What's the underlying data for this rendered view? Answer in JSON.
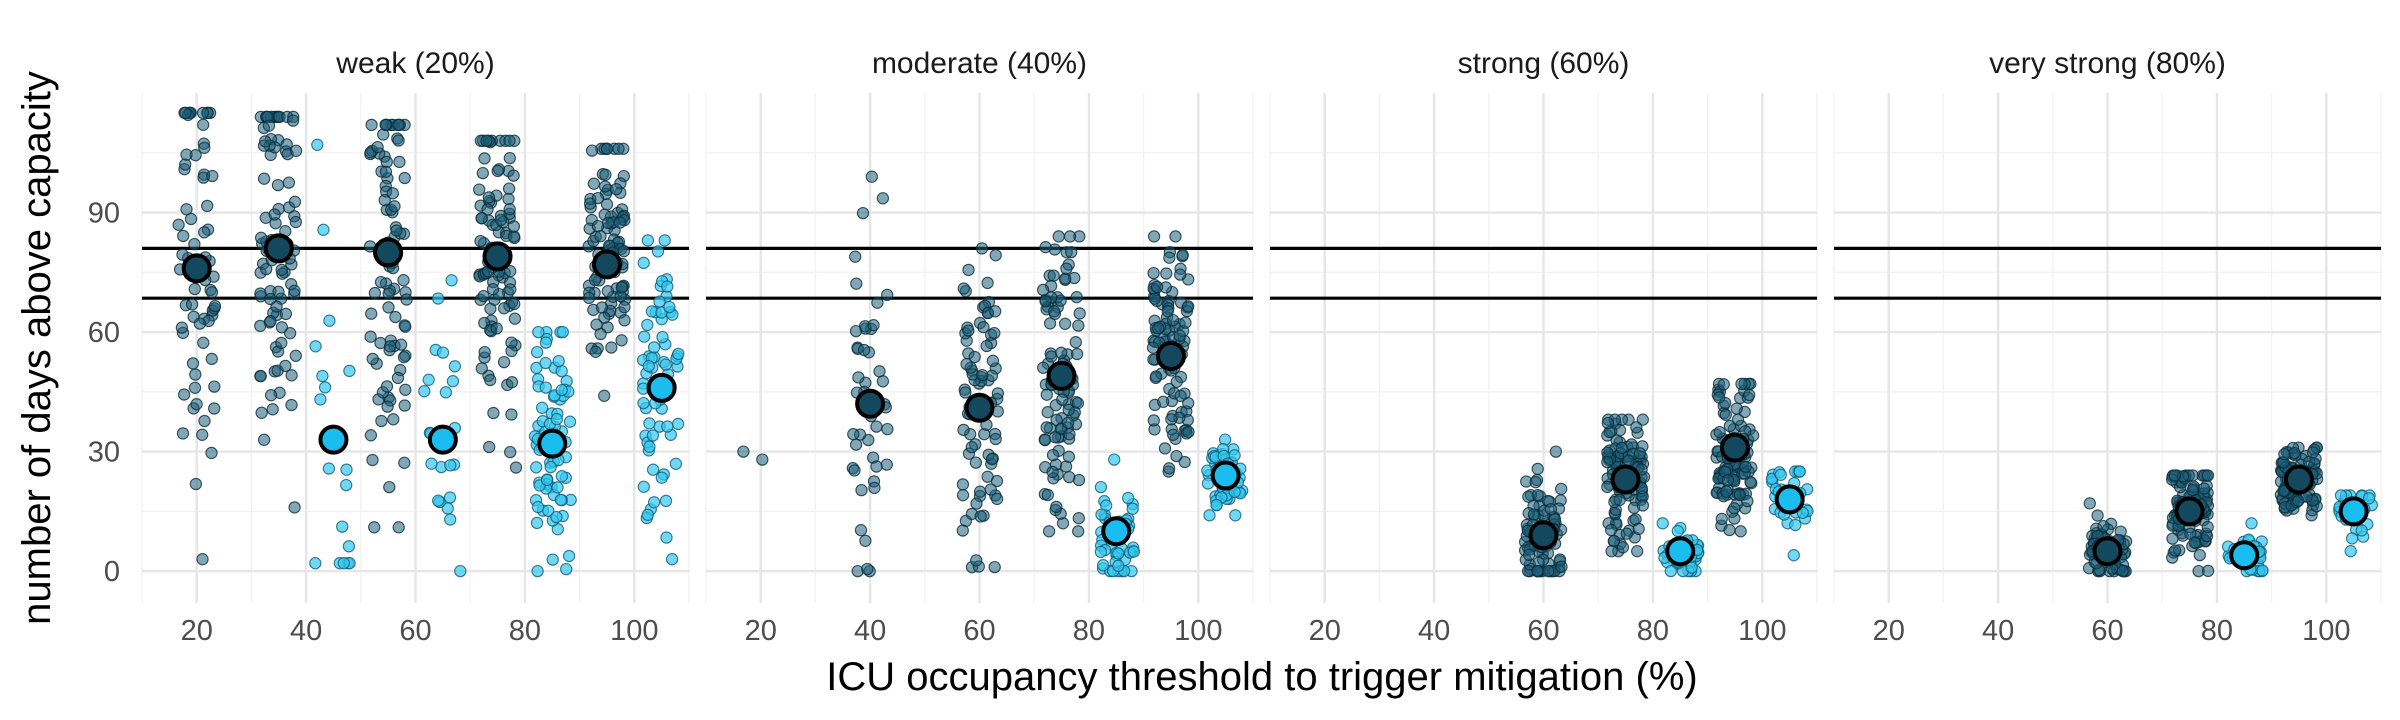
{
  "chart_data": {
    "type": "scatter",
    "title": "",
    "xlabel": "ICU occupancy threshold to trigger mitigation (%)",
    "ylabel": "number of days above capacity",
    "x_ticks": [
      20,
      40,
      60,
      80,
      100
    ],
    "y_ticks": [
      0,
      30,
      60,
      90
    ],
    "xlim": [
      10,
      110
    ],
    "ylim": [
      -8,
      120
    ],
    "reference_lines": [
      81,
      68.5
    ],
    "grid": true,
    "facets": [
      "weak (20%)",
      "moderate (40%)",
      "strong (60%)",
      "very strong (80%)"
    ],
    "series_colors": {
      "dark": "#1b5f7a",
      "light": "#33c8f0"
    },
    "panels": [
      {
        "label": "weak (20%)",
        "groups": [
          {
            "kind": "dark",
            "x": 20,
            "mean": 76,
            "min": 3,
            "max": 115,
            "n": 70
          },
          {
            "kind": "dark",
            "x": 35,
            "mean": 81,
            "min": 16,
            "max": 114,
            "n": 90
          },
          {
            "kind": "light",
            "x": 45,
            "mean": 33,
            "min": 2,
            "max": 107,
            "n": 18
          },
          {
            "kind": "dark",
            "x": 55,
            "mean": 80,
            "min": 11,
            "max": 112,
            "n": 90
          },
          {
            "kind": "light",
            "x": 65,
            "mean": 33,
            "min": 0,
            "max": 73,
            "n": 22
          },
          {
            "kind": "dark",
            "x": 75,
            "mean": 79,
            "min": 26,
            "max": 108,
            "n": 100
          },
          {
            "kind": "light",
            "x": 85,
            "mean": 32,
            "min": 0,
            "max": 60,
            "n": 80
          },
          {
            "kind": "dark",
            "x": 95,
            "mean": 77,
            "min": 44,
            "max": 106,
            "n": 100
          },
          {
            "kind": "light",
            "x": 105,
            "mean": 46,
            "min": 3,
            "max": 83,
            "n": 70
          }
        ]
      },
      {
        "label": "moderate (40%)",
        "groups": [
          {
            "kind": "dark",
            "x": 20,
            "mean": null,
            "min": 28,
            "max": 30,
            "n": 2
          },
          {
            "kind": "dark",
            "x": 40,
            "mean": 42,
            "min": 0,
            "max": 99,
            "n": 45
          },
          {
            "kind": "dark",
            "x": 60,
            "mean": 41,
            "min": 1,
            "max": 81,
            "n": 80
          },
          {
            "kind": "dark",
            "x": 75,
            "mean": 49,
            "min": 10,
            "max": 84,
            "n": 100
          },
          {
            "kind": "light",
            "x": 85,
            "mean": 10,
            "min": 0,
            "max": 28,
            "n": 45
          },
          {
            "kind": "dark",
            "x": 95,
            "mean": 54,
            "min": 25,
            "max": 84,
            "n": 100
          },
          {
            "kind": "light",
            "x": 105,
            "mean": 24,
            "min": 14,
            "max": 33,
            "n": 50
          }
        ]
      },
      {
        "label": "strong (60%)",
        "groups": [
          {
            "kind": "dark",
            "x": 60,
            "mean": 9,
            "min": 0,
            "max": 30,
            "n": 90
          },
          {
            "kind": "dark",
            "x": 75,
            "mean": 23,
            "min": 5,
            "max": 38,
            "n": 110
          },
          {
            "kind": "light",
            "x": 85,
            "mean": 5,
            "min": 0,
            "max": 12,
            "n": 45
          },
          {
            "kind": "dark",
            "x": 95,
            "mean": 31,
            "min": 10,
            "max": 47,
            "n": 110
          },
          {
            "kind": "light",
            "x": 105,
            "mean": 18,
            "min": 4,
            "max": 25,
            "n": 35
          }
        ]
      },
      {
        "label": "very strong (80%)",
        "groups": [
          {
            "kind": "dark",
            "x": 60,
            "mean": 5,
            "min": 0,
            "max": 17,
            "n": 70
          },
          {
            "kind": "dark",
            "x": 75,
            "mean": 15,
            "min": 0,
            "max": 24,
            "n": 110
          },
          {
            "kind": "light",
            "x": 85,
            "mean": 4,
            "min": 0,
            "max": 12,
            "n": 40
          },
          {
            "kind": "dark",
            "x": 95,
            "mean": 23,
            "min": 14,
            "max": 31,
            "n": 110
          },
          {
            "kind": "light",
            "x": 105,
            "mean": 15,
            "min": 5,
            "max": 19,
            "n": 30
          }
        ]
      }
    ]
  }
}
